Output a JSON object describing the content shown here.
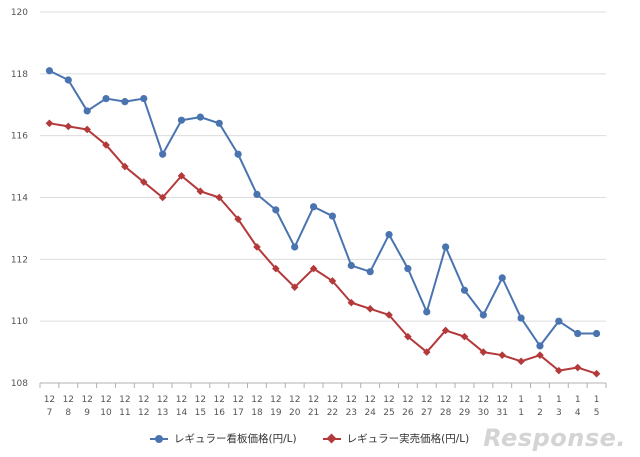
{
  "chart_data": {
    "type": "line",
    "categories": [
      [
        "12",
        "7"
      ],
      [
        "12",
        "8"
      ],
      [
        "12",
        "9"
      ],
      [
        "12",
        "10"
      ],
      [
        "12",
        "11"
      ],
      [
        "12",
        "12"
      ],
      [
        "12",
        "13"
      ],
      [
        "12",
        "14"
      ],
      [
        "12",
        "15"
      ],
      [
        "12",
        "16"
      ],
      [
        "12",
        "17"
      ],
      [
        "12",
        "18"
      ],
      [
        "12",
        "19"
      ],
      [
        "12",
        "20"
      ],
      [
        "12",
        "21"
      ],
      [
        "12",
        "22"
      ],
      [
        "12",
        "23"
      ],
      [
        "12",
        "24"
      ],
      [
        "12",
        "25"
      ],
      [
        "12",
        "26"
      ],
      [
        "12",
        "27"
      ],
      [
        "12",
        "28"
      ],
      [
        "12",
        "29"
      ],
      [
        "12",
        "30"
      ],
      [
        "12",
        "31"
      ],
      [
        "1",
        "1"
      ],
      [
        "1",
        "2"
      ],
      [
        "1",
        "3"
      ],
      [
        "1",
        "4"
      ],
      [
        "1",
        "5"
      ]
    ],
    "series": [
      {
        "name": "レギュラー看板価格(円/L)",
        "color": "#4a74b0",
        "marker": "circle",
        "values": [
          118.1,
          117.8,
          116.8,
          117.2,
          117.1,
          117.2,
          115.4,
          116.5,
          116.6,
          116.4,
          115.4,
          114.1,
          113.6,
          112.4,
          113.7,
          113.4,
          111.8,
          111.6,
          112.8,
          111.7,
          110.3,
          112.4,
          111.0,
          110.2,
          111.4,
          110.1,
          109.2,
          110.0,
          109.6,
          109.6
        ]
      },
      {
        "name": "レギュラー実売価格(円/L)",
        "color": "#b3393a",
        "marker": "diamond",
        "values": [
          116.4,
          116.3,
          116.2,
          115.7,
          115.0,
          114.5,
          114.0,
          114.7,
          114.2,
          114.0,
          113.3,
          112.4,
          111.7,
          111.1,
          111.7,
          111.3,
          110.6,
          110.4,
          110.2,
          109.5,
          109.0,
          109.7,
          109.5,
          109.0,
          108.9,
          108.7,
          108.9,
          108.4,
          108.5,
          108.3
        ]
      }
    ],
    "yticks": [
      108,
      110,
      112,
      114,
      116,
      118,
      120
    ],
    "ylim": [
      108,
      120
    ],
    "grid": true,
    "legend_position": "bottom"
  },
  "legend": {
    "series1": "レギュラー看板価格(円/L)",
    "series2": "レギュラー実売価格(円/L)"
  },
  "watermark": "Response."
}
